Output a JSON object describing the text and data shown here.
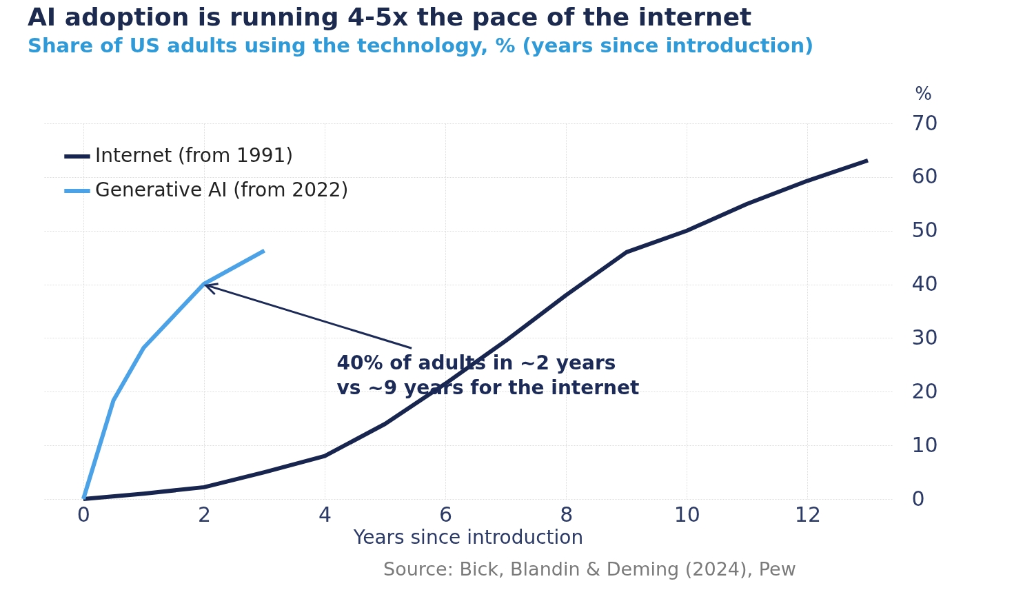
{
  "chart_data": {
    "type": "line",
    "title": "AI adoption is running 4-5x the pace of the internet",
    "subtitle": "Share of US adults using the technology, % (years since introduction)",
    "xlabel": "Years since introduction",
    "ylabel": "%",
    "series": [
      {
        "name": "Internet (from 1991)",
        "color": "#17254f",
        "x": [
          0,
          1,
          2,
          3,
          4,
          5,
          6,
          7,
          8,
          9,
          10,
          11,
          12,
          13
        ],
        "values": [
          0,
          1,
          2.2,
          5,
          8,
          14,
          21.5,
          29.5,
          38,
          46,
          50,
          55,
          59.3,
          63.1
        ]
      },
      {
        "name": "Generative AI (from 2022)",
        "color": "#4ca2e6",
        "x": [
          0,
          0.5,
          1,
          2,
          3
        ],
        "values": [
          0,
          18.4,
          28.2,
          40.1,
          46.3
        ]
      }
    ],
    "xlim": [
      -0.65,
      13.4
    ],
    "xticks": [
      0,
      2,
      4,
      6,
      8,
      10,
      12
    ],
    "ylim": [
      0,
      70
    ],
    "yticks": [
      0,
      10,
      20,
      30,
      40,
      50,
      60,
      70
    ],
    "grid": true,
    "legend": "top left",
    "annotations": [
      {
        "text": "40% of adults in ~2 years\nvs ~9 years for the internet",
        "x": 2,
        "y": 40
      },
      "Source: Bick, Blandin & Deming (2024), Pew"
    ]
  }
}
